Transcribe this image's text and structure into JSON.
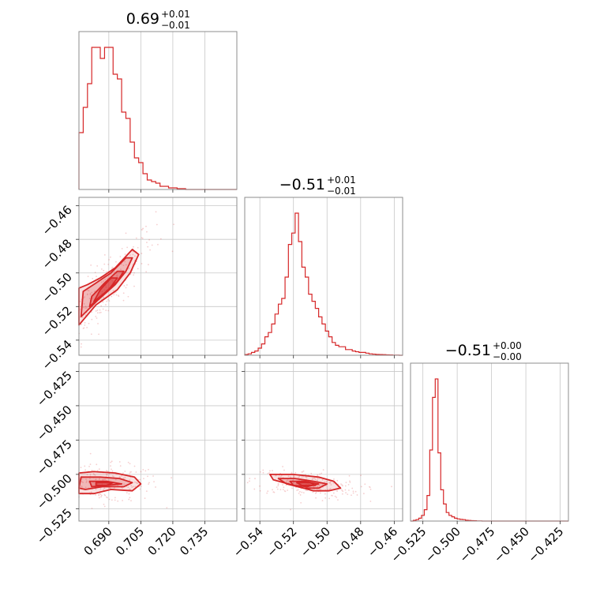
{
  "chart_data": {
    "type": "corner",
    "color": "#d62728",
    "grid": true,
    "parameters": [
      {
        "title_value": "0.69",
        "title_plus": "+0.01",
        "title_minus": "−0.01",
        "range": [
          0.676,
          0.75
        ],
        "ticks": [
          0.69,
          0.705,
          0.72,
          0.735
        ],
        "tick_labels": [
          "0.690",
          "0.705",
          "0.720",
          "0.735"
        ],
        "hist_edges": [
          0.676,
          0.678,
          0.68,
          0.682,
          0.684,
          0.686,
          0.688,
          0.69,
          0.692,
          0.694,
          0.696,
          0.698,
          0.7,
          0.702,
          0.704,
          0.706,
          0.708,
          0.71,
          0.712,
          0.714,
          0.716,
          0.718,
          0.72,
          0.722,
          0.724,
          0.726,
          0.728,
          0.73,
          0.75
        ],
        "hist_values": [
          0.36,
          0.52,
          0.67,
          0.9,
          0.9,
          0.83,
          0.9,
          0.9,
          0.73,
          0.7,
          0.49,
          0.45,
          0.3,
          0.2,
          0.17,
          0.1,
          0.06,
          0.05,
          0.04,
          0.02,
          0.02,
          0.01,
          0.01,
          0.005,
          0.005,
          0.0,
          0.0,
          0.0
        ]
      },
      {
        "title_value": "−0.51",
        "title_plus": "+0.01",
        "title_minus": "−0.01",
        "range": [
          -0.549,
          -0.455
        ],
        "ticks": [
          -0.54,
          -0.52,
          -0.5,
          -0.48,
          -0.46
        ],
        "tick_labels": [
          "−0.54",
          "−0.52",
          "−0.50",
          "−0.48",
          "−0.46"
        ],
        "hist_edges": [
          -0.549,
          -0.547,
          -0.545,
          -0.543,
          -0.541,
          -0.539,
          -0.537,
          -0.535,
          -0.533,
          -0.531,
          -0.529,
          -0.527,
          -0.525,
          -0.523,
          -0.521,
          -0.519,
          -0.517,
          -0.515,
          -0.513,
          -0.511,
          -0.509,
          -0.507,
          -0.505,
          -0.503,
          -0.501,
          -0.499,
          -0.497,
          -0.495,
          -0.493,
          -0.491,
          -0.489,
          -0.487,
          -0.485,
          -0.483,
          -0.481,
          -0.479,
          -0.477,
          -0.475,
          -0.473,
          -0.471,
          -0.469,
          -0.467,
          -0.465,
          -0.463,
          -0.461,
          -0.459,
          -0.457,
          -0.455
        ],
        "hist_values": [
          0.005,
          0.01,
          0.02,
          0.03,
          0.05,
          0.08,
          0.13,
          0.16,
          0.22,
          0.29,
          0.36,
          0.4,
          0.55,
          0.78,
          0.86,
          1.0,
          0.8,
          0.62,
          0.55,
          0.43,
          0.38,
          0.33,
          0.27,
          0.22,
          0.17,
          0.13,
          0.09,
          0.07,
          0.06,
          0.06,
          0.04,
          0.04,
          0.03,
          0.025,
          0.02,
          0.02,
          0.015,
          0.01,
          0.008,
          0.006,
          0.005,
          0.004,
          0.003,
          0.002,
          0.001,
          0.001,
          0.0
        ]
      },
      {
        "title_value": "−0.51",
        "title_plus": "+0.00",
        "title_minus": "−0.00",
        "range": [
          -0.534,
          -0.419
        ],
        "ticks": [
          -0.525,
          -0.5,
          -0.475,
          -0.45,
          -0.425
        ],
        "tick_labels": [
          "−0.525",
          "−0.500",
          "−0.475",
          "−0.450",
          "−0.425"
        ],
        "hist_edges": [
          -0.534,
          -0.532,
          -0.53,
          -0.528,
          -0.526,
          -0.524,
          -0.522,
          -0.52,
          -0.518,
          -0.516,
          -0.514,
          -0.512,
          -0.51,
          -0.508,
          -0.506,
          -0.504,
          -0.502,
          -0.5,
          -0.498,
          -0.496,
          -0.494,
          -0.492,
          -0.49,
          -0.488,
          -0.486,
          -0.484,
          -0.482,
          -0.48,
          -0.419
        ],
        "hist_values": [
          0.0,
          0.005,
          0.01,
          0.02,
          0.04,
          0.08,
          0.18,
          0.5,
          0.87,
          1.0,
          0.48,
          0.22,
          0.12,
          0.06,
          0.04,
          0.03,
          0.02,
          0.015,
          0.012,
          0.01,
          0.006,
          0.004,
          0.003,
          0.002,
          0.001,
          0.001,
          0.0,
          0.0
        ]
      }
    ],
    "pairs": [
      {
        "x_param": 0,
        "y_param": 1,
        "correlation": "positive",
        "contours": [
          [
            [
              0.676,
              -0.531
            ],
            [
              0.684,
              -0.519
            ],
            [
              0.694,
              -0.51
            ],
            [
              0.7,
              -0.5
            ],
            [
              0.704,
              -0.489
            ],
            [
              0.701,
              -0.486
            ],
            [
              0.693,
              -0.497
            ],
            [
              0.686,
              -0.503
            ],
            [
              0.68,
              -0.507
            ],
            [
              0.676,
              -0.509
            ]
          ],
          [
            [
              0.677,
              -0.526
            ],
            [
              0.685,
              -0.516
            ],
            [
              0.693,
              -0.507
            ],
            [
              0.698,
              -0.499
            ],
            [
              0.701,
              -0.491
            ],
            [
              0.698,
              -0.491
            ],
            [
              0.691,
              -0.5
            ],
            [
              0.684,
              -0.506
            ],
            [
              0.678,
              -0.511
            ]
          ],
          [
            [
              0.681,
              -0.52
            ],
            [
              0.688,
              -0.512
            ],
            [
              0.694,
              -0.505
            ],
            [
              0.697,
              -0.499
            ],
            [
              0.694,
              -0.499
            ],
            [
              0.688,
              -0.506
            ],
            [
              0.682,
              -0.514
            ]
          ],
          [
            [
              0.683,
              -0.517
            ],
            [
              0.69,
              -0.51
            ],
            [
              0.694,
              -0.503
            ],
            [
              0.691,
              -0.503
            ],
            [
              0.686,
              -0.51
            ]
          ]
        ]
      },
      {
        "x_param": 0,
        "y_param": 2,
        "correlation": "none",
        "contours": [
          [
            [
              0.676,
              -0.499
            ],
            [
              0.683,
              -0.498
            ],
            [
              0.693,
              -0.499
            ],
            [
              0.702,
              -0.502
            ],
            [
              0.705,
              -0.507
            ],
            [
              0.701,
              -0.512
            ],
            [
              0.691,
              -0.511
            ],
            [
              0.683,
              -0.514
            ],
            [
              0.676,
              -0.514
            ]
          ],
          [
            [
              0.677,
              -0.502
            ],
            [
              0.686,
              -0.502
            ],
            [
              0.695,
              -0.503
            ],
            [
              0.701,
              -0.506
            ],
            [
              0.697,
              -0.509
            ],
            [
              0.687,
              -0.509
            ],
            [
              0.679,
              -0.511
            ],
            [
              0.676,
              -0.51
            ]
          ],
          [
            [
              0.681,
              -0.505
            ],
            [
              0.689,
              -0.505
            ],
            [
              0.696,
              -0.507
            ],
            [
              0.689,
              -0.508
            ],
            [
              0.682,
              -0.509
            ]
          ],
          [
            [
              0.684,
              -0.506
            ],
            [
              0.692,
              -0.506
            ],
            [
              0.689,
              -0.508
            ],
            [
              0.684,
              -0.508
            ]
          ]
        ]
      },
      {
        "x_param": 1,
        "y_param": 2,
        "correlation": "weak-negative",
        "contours": [
          [
            [
              -0.534,
              -0.5
            ],
            [
              -0.52,
              -0.5
            ],
            [
              -0.505,
              -0.502
            ],
            [
              -0.496,
              -0.505
            ],
            [
              -0.492,
              -0.51
            ],
            [
              -0.499,
              -0.512
            ],
            [
              -0.508,
              -0.512
            ],
            [
              -0.52,
              -0.508
            ],
            [
              -0.532,
              -0.504
            ]
          ],
          [
            [
              -0.529,
              -0.503
            ],
            [
              -0.519,
              -0.503
            ],
            [
              -0.508,
              -0.505
            ],
            [
              -0.5,
              -0.507
            ],
            [
              -0.505,
              -0.51
            ],
            [
              -0.514,
              -0.51
            ],
            [
              -0.524,
              -0.507
            ]
          ],
          [
            [
              -0.522,
              -0.505
            ],
            [
              -0.513,
              -0.505
            ],
            [
              -0.505,
              -0.507
            ],
            [
              -0.512,
              -0.509
            ],
            [
              -0.52,
              -0.508
            ]
          ],
          [
            [
              -0.518,
              -0.506
            ],
            [
              -0.51,
              -0.506
            ],
            [
              -0.507,
              -0.508
            ],
            [
              -0.515,
              -0.508
            ]
          ]
        ]
      }
    ]
  }
}
